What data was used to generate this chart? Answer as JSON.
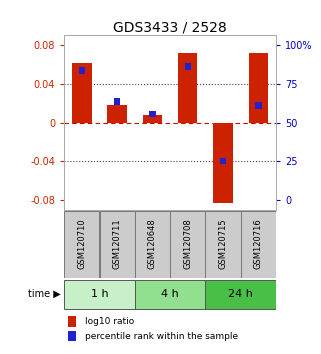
{
  "title": "GDS3433 / 2528",
  "samples": [
    "GSM120710",
    "GSM120711",
    "GSM120648",
    "GSM120708",
    "GSM120715",
    "GSM120716"
  ],
  "log10_ratio": [
    0.062,
    0.018,
    0.008,
    0.072,
    -0.083,
    0.072
  ],
  "percentile_rank": [
    0.8,
    0.62,
    0.55,
    0.82,
    0.28,
    0.6
  ],
  "groups": [
    {
      "label": "1 h",
      "samples": [
        0,
        1
      ],
      "color": "#c8f0c8"
    },
    {
      "label": "4 h",
      "samples": [
        2,
        3
      ],
      "color": "#90e090"
    },
    {
      "label": "24 h",
      "samples": [
        4,
        5
      ],
      "color": "#48c048"
    }
  ],
  "ylim": [
    -0.09,
    0.09
  ],
  "yticks": [
    -0.08,
    -0.04,
    0.0,
    0.04,
    0.08
  ],
  "ytick_labels_left": [
    "-0.08",
    "-0.04",
    "0",
    "0.04",
    "0.08"
  ],
  "ytick_labels_right": [
    "0",
    "25",
    "50",
    "75",
    "100%"
  ],
  "bar_color_red": "#cc2200",
  "bar_color_blue": "#2222cc",
  "hline_zero_color": "#cc0000",
  "hline_dotted_color": "#444444",
  "bar_width": 0.55,
  "percentile_bar_width": 0.18,
  "percentile_bar_height": 0.007,
  "legend_red": "log10 ratio",
  "legend_blue": "percentile rank within the sample",
  "time_label": "time",
  "title_fontsize": 10,
  "tick_fontsize": 7,
  "right_tick_color": "#0000cc",
  "left_tick_color": "#cc2200",
  "sample_box_color": "#cccccc",
  "sample_box_edgecolor": "#777777",
  "group_box_edgecolor": "#555555"
}
